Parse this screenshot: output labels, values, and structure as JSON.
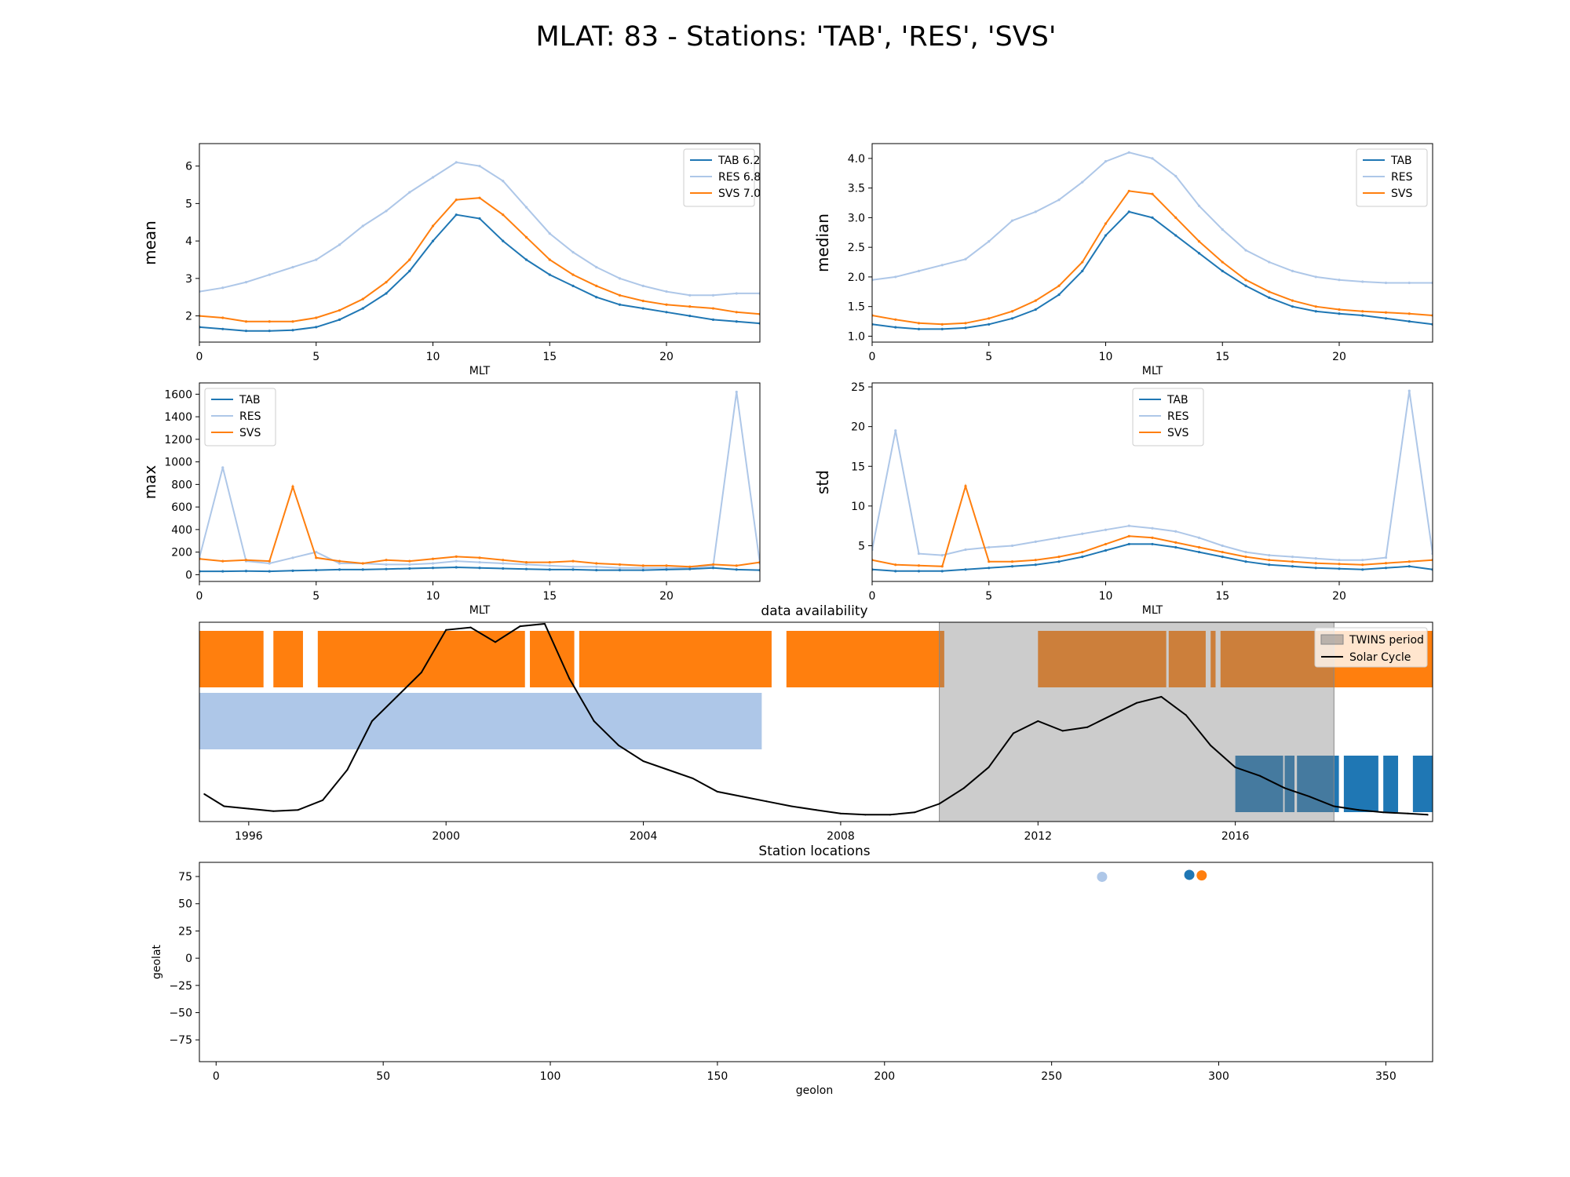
{
  "figure": {
    "title": "MLAT: 83 - Stations: 'TAB', 'RES', 'SVS'"
  },
  "colors": {
    "TAB": "#1f77b4",
    "RES": "#aec7e8",
    "SVS": "#ff7f0e",
    "twins": "#cccccc",
    "solar": "#000000"
  },
  "chart_data": [
    {
      "id": "mean",
      "type": "line",
      "title": "",
      "xlabel": "MLT",
      "ylabel": "mean",
      "xlim": [
        0,
        24
      ],
      "ylim": [
        1.3,
        6.6
      ],
      "xticks": [
        0,
        5,
        10,
        15,
        20
      ],
      "yticks": [
        2,
        3,
        4,
        5,
        6
      ],
      "legend": {
        "placement": "top-right",
        "labels": [
          "TAB 6.2",
          "RES 6.8",
          "SVS 7.0"
        ]
      },
      "x": [
        0,
        1,
        2,
        3,
        4,
        5,
        6,
        7,
        8,
        9,
        10,
        11,
        12,
        13,
        14,
        15,
        16,
        17,
        18,
        19,
        20,
        21,
        22,
        23,
        24
      ],
      "series": [
        {
          "name": "TAB 6.2",
          "values": [
            1.7,
            1.65,
            1.6,
            1.6,
            1.62,
            1.7,
            1.9,
            2.2,
            2.6,
            3.2,
            4.0,
            4.7,
            4.6,
            4.0,
            3.5,
            3.1,
            2.8,
            2.5,
            2.3,
            2.2,
            2.1,
            2.0,
            1.9,
            1.85,
            1.8
          ]
        },
        {
          "name": "RES 6.8",
          "values": [
            2.65,
            2.75,
            2.9,
            3.1,
            3.3,
            3.5,
            3.9,
            4.4,
            4.8,
            5.3,
            5.7,
            6.1,
            6.0,
            5.6,
            4.9,
            4.2,
            3.7,
            3.3,
            3.0,
            2.8,
            2.65,
            2.55,
            2.55,
            2.6,
            2.6
          ]
        },
        {
          "name": "SVS 7.0",
          "values": [
            2.0,
            1.95,
            1.85,
            1.85,
            1.85,
            1.95,
            2.15,
            2.45,
            2.9,
            3.5,
            4.4,
            5.1,
            5.15,
            4.7,
            4.1,
            3.5,
            3.1,
            2.8,
            2.55,
            2.4,
            2.3,
            2.25,
            2.2,
            2.1,
            2.05
          ]
        }
      ]
    },
    {
      "id": "median",
      "type": "line",
      "title": "",
      "xlabel": "MLT",
      "ylabel": "median",
      "xlim": [
        0,
        24
      ],
      "ylim": [
        0.9,
        4.25
      ],
      "xticks": [
        0,
        5,
        10,
        15,
        20
      ],
      "yticks": [
        1.0,
        1.5,
        2.0,
        2.5,
        3.0,
        3.5,
        4.0
      ],
      "legend": {
        "placement": "top-right",
        "labels": [
          "TAB",
          "RES",
          "SVS"
        ]
      },
      "x": [
        0,
        1,
        2,
        3,
        4,
        5,
        6,
        7,
        8,
        9,
        10,
        11,
        12,
        13,
        14,
        15,
        16,
        17,
        18,
        19,
        20,
        21,
        22,
        23,
        24
      ],
      "series": [
        {
          "name": "TAB",
          "values": [
            1.2,
            1.15,
            1.12,
            1.12,
            1.14,
            1.2,
            1.3,
            1.45,
            1.7,
            2.1,
            2.7,
            3.1,
            3.0,
            2.7,
            2.4,
            2.1,
            1.85,
            1.65,
            1.5,
            1.42,
            1.38,
            1.35,
            1.3,
            1.25,
            1.2
          ]
        },
        {
          "name": "RES",
          "values": [
            1.95,
            2.0,
            2.1,
            2.2,
            2.3,
            2.6,
            2.95,
            3.1,
            3.3,
            3.6,
            3.95,
            4.1,
            4.0,
            3.7,
            3.2,
            2.8,
            2.45,
            2.25,
            2.1,
            2.0,
            1.95,
            1.92,
            1.9,
            1.9,
            1.9
          ]
        },
        {
          "name": "SVS",
          "values": [
            1.35,
            1.28,
            1.22,
            1.2,
            1.22,
            1.3,
            1.42,
            1.6,
            1.85,
            2.25,
            2.9,
            3.45,
            3.4,
            3.0,
            2.6,
            2.25,
            1.95,
            1.75,
            1.6,
            1.5,
            1.45,
            1.42,
            1.4,
            1.38,
            1.35
          ]
        }
      ]
    },
    {
      "id": "max",
      "type": "line",
      "title": "",
      "xlabel": "MLT",
      "ylabel": "max",
      "xlim": [
        0,
        24
      ],
      "ylim": [
        -60,
        1700
      ],
      "xticks": [
        0,
        5,
        10,
        15,
        20
      ],
      "yticks": [
        0,
        200,
        400,
        600,
        800,
        1000,
        1200,
        1400,
        1600
      ],
      "legend": {
        "placement": "top-left",
        "labels": [
          "TAB",
          "RES",
          "SVS"
        ]
      },
      "x": [
        0,
        1,
        2,
        3,
        4,
        5,
        6,
        7,
        8,
        9,
        10,
        11,
        12,
        13,
        14,
        15,
        16,
        17,
        18,
        19,
        20,
        21,
        22,
        23,
        24
      ],
      "series": [
        {
          "name": "TAB",
          "values": [
            30,
            30,
            32,
            30,
            35,
            40,
            45,
            45,
            50,
            55,
            60,
            65,
            60,
            55,
            50,
            45,
            45,
            40,
            40,
            40,
            45,
            50,
            60,
            45,
            40
          ]
        },
        {
          "name": "RES",
          "values": [
            150,
            950,
            120,
            100,
            150,
            200,
            100,
            100,
            90,
            90,
            100,
            120,
            110,
            100,
            90,
            80,
            70,
            70,
            60,
            60,
            60,
            60,
            80,
            1620,
            100
          ]
        },
        {
          "name": "SVS",
          "values": [
            140,
            120,
            130,
            120,
            780,
            150,
            120,
            100,
            130,
            120,
            140,
            160,
            150,
            130,
            110,
            110,
            120,
            100,
            90,
            80,
            80,
            70,
            90,
            80,
            110
          ]
        }
      ]
    },
    {
      "id": "std",
      "type": "line",
      "title": "",
      "xlabel": "MLT",
      "ylabel": "std",
      "xlim": [
        0,
        24
      ],
      "ylim": [
        0.5,
        25.5
      ],
      "xticks": [
        0,
        5,
        10,
        15,
        20
      ],
      "yticks": [
        5,
        10,
        15,
        20,
        25
      ],
      "legend": {
        "placement": "top-center",
        "labels": [
          "TAB",
          "RES",
          "SVS"
        ]
      },
      "x": [
        0,
        1,
        2,
        3,
        4,
        5,
        6,
        7,
        8,
        9,
        10,
        11,
        12,
        13,
        14,
        15,
        16,
        17,
        18,
        19,
        20,
        21,
        22,
        23,
        24
      ],
      "series": [
        {
          "name": "TAB",
          "values": [
            2.0,
            1.8,
            1.8,
            1.8,
            2.0,
            2.2,
            2.4,
            2.6,
            3.0,
            3.6,
            4.4,
            5.2,
            5.2,
            4.8,
            4.2,
            3.6,
            3.0,
            2.6,
            2.4,
            2.2,
            2.1,
            2.0,
            2.2,
            2.4,
            2.0
          ]
        },
        {
          "name": "RES",
          "values": [
            4.5,
            19.5,
            4.0,
            3.8,
            4.5,
            4.8,
            5.0,
            5.5,
            6.0,
            6.5,
            7.0,
            7.5,
            7.2,
            6.8,
            6.0,
            5.0,
            4.2,
            3.8,
            3.6,
            3.4,
            3.2,
            3.2,
            3.5,
            24.5,
            4.0
          ]
        },
        {
          "name": "SVS",
          "values": [
            3.2,
            2.6,
            2.5,
            2.4,
            12.5,
            3.0,
            3.0,
            3.2,
            3.6,
            4.2,
            5.2,
            6.2,
            6.0,
            5.4,
            4.8,
            4.2,
            3.6,
            3.2,
            3.0,
            2.8,
            2.7,
            2.6,
            2.8,
            3.0,
            3.2
          ]
        }
      ]
    },
    {
      "id": "availability",
      "type": "bar",
      "title": "data availability",
      "xlabel": "",
      "ylabel": "",
      "xlim": [
        1995.0,
        2020.0
      ],
      "xticks": [
        1996,
        2000,
        2004,
        2008,
        2012,
        2016
      ],
      "legend": {
        "placement": "top-right",
        "labels": [
          "TWINS period",
          "Solar Cycle"
        ]
      },
      "twins_period": [
        2010.0,
        2018.0
      ],
      "rows": [
        {
          "station": "SVS",
          "row": 3,
          "intervals": [
            [
              1995.0,
              1996.3
            ],
            [
              1996.5,
              1997.1
            ],
            [
              1997.4,
              2001.6
            ],
            [
              2001.7,
              2002.6
            ],
            [
              2002.7,
              2006.6
            ],
            [
              2006.9,
              2010.1
            ],
            [
              2012.0,
              2014.6
            ],
            [
              2014.65,
              2015.4
            ],
            [
              2015.5,
              2015.6
            ],
            [
              2015.7,
              2020.0
            ]
          ]
        },
        {
          "station": "RES",
          "row": 2,
          "intervals": [
            [
              1995.0,
              2006.4
            ]
          ]
        },
        {
          "station": "TAB",
          "row": 1,
          "intervals": [
            [
              2016.0,
              2016.97
            ],
            [
              2017.0,
              2017.2
            ],
            [
              2017.25,
              2018.1
            ],
            [
              2018.2,
              2018.9
            ],
            [
              2019.0,
              2019.3
            ],
            [
              2019.6,
              2020.0
            ]
          ]
        }
      ],
      "solar_cycle": {
        "name": "Solar Cycle",
        "x": [
          1995.1,
          1995.5,
          1996.0,
          1996.5,
          1997.0,
          1997.5,
          1998.0,
          1998.5,
          1999.0,
          1999.5,
          2000.0,
          2000.5,
          2001.0,
          2001.5,
          2002.0,
          2002.5,
          2003.0,
          2003.5,
          2004.0,
          2004.5,
          2005.0,
          2005.5,
          2006.0,
          2006.5,
          2007.0,
          2007.5,
          2008.0,
          2008.5,
          2009.0,
          2009.5,
          2010.0,
          2010.5,
          2011.0,
          2011.5,
          2012.0,
          2012.5,
          2013.0,
          2013.5,
          2014.0,
          2014.5,
          2015.0,
          2015.5,
          2016.0,
          2016.5,
          2017.0,
          2017.5,
          2018.0,
          2018.5,
          2019.0,
          2019.5,
          2019.9
        ],
        "values": [
          20,
          10,
          8,
          6,
          7,
          15,
          40,
          80,
          100,
          120,
          155,
          157,
          145,
          158,
          160,
          115,
          80,
          60,
          47,
          40,
          33,
          22,
          18,
          14,
          10,
          7,
          4,
          3,
          3,
          5,
          12,
          25,
          42,
          70,
          80,
          72,
          75,
          85,
          95,
          100,
          85,
          60,
          42,
          35,
          25,
          18,
          10,
          7,
          5,
          4,
          3
        ]
      }
    },
    {
      "id": "locations",
      "type": "scatter",
      "title": "Station locations",
      "xlabel": "geolon",
      "ylabel": "geolat",
      "xlim": [
        -5,
        364
      ],
      "ylim": [
        -95,
        88
      ],
      "xticks": [
        0,
        50,
        100,
        150,
        200,
        250,
        300,
        350
      ],
      "yticks": [
        -75,
        -50,
        -25,
        0,
        25,
        50,
        75
      ],
      "points": [
        {
          "station": "RES",
          "x": 265.1,
          "y": 74.7
        },
        {
          "station": "TAB",
          "x": 291.2,
          "y": 76.5
        },
        {
          "station": "SVS",
          "x": 294.9,
          "y": 76.0
        }
      ]
    }
  ]
}
